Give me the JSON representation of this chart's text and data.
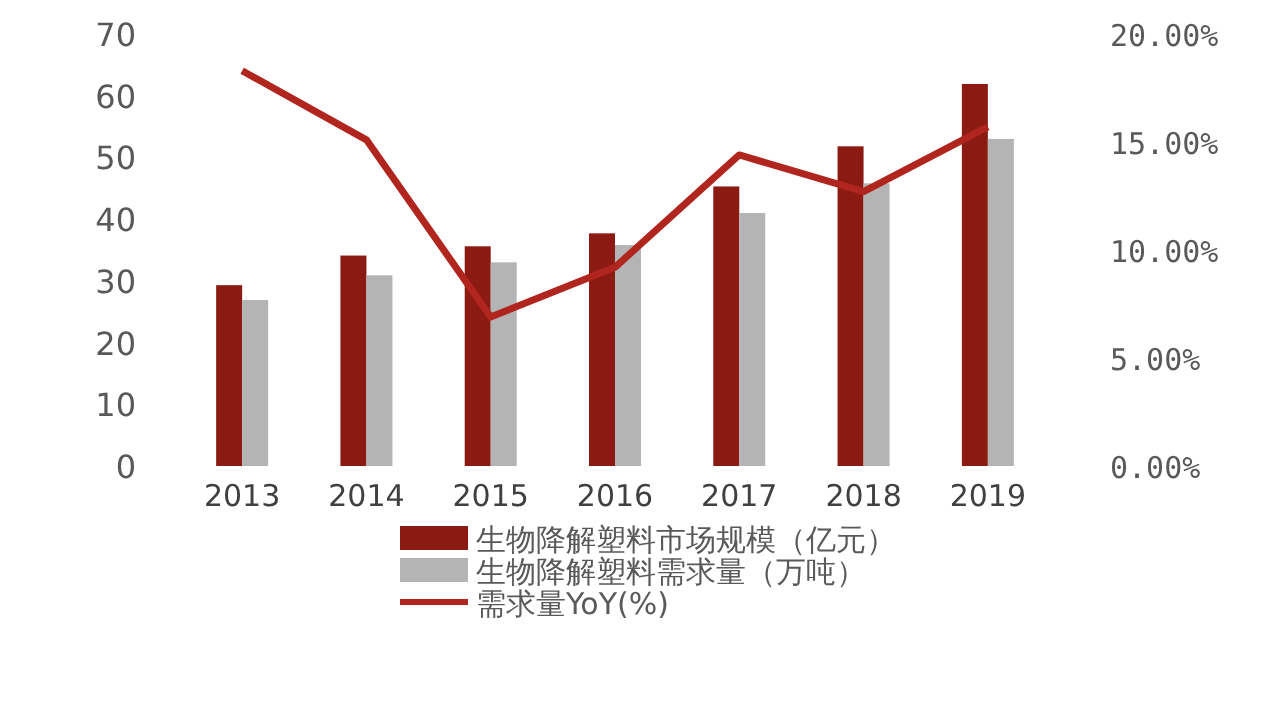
{
  "chart_data": {
    "type": "bar",
    "categories": [
      "2013",
      "2014",
      "2015",
      "2016",
      "2017",
      "2018",
      "2019"
    ],
    "ylim": [
      0,
      70
    ],
    "yticks": [
      0,
      10,
      20,
      30,
      40,
      50,
      60,
      70
    ],
    "y2lim": [
      0,
      20
    ],
    "y2ticks": [
      {
        "value": 0,
        "label": "0.00%"
      },
      {
        "value": 5,
        "label": "5.00%"
      },
      {
        "value": 10,
        "label": "10.00%"
      },
      {
        "value": 15,
        "label": "15.00%"
      },
      {
        "value": 20,
        "label": "20.00%"
      }
    ],
    "legend": "bottom",
    "grid": false,
    "series": [
      {
        "name": "生物降解塑料市场规模（亿元）",
        "color": "#8b1a12",
        "values": [
          29.3,
          34.1,
          35.6,
          37.7,
          45.3,
          51.8,
          61.9
        ]
      },
      {
        "name": "生物降解塑料需求量（万吨）",
        "color": "#b4b4b4",
        "values": [
          26.9,
          30.9,
          33.0,
          35.8,
          41.0,
          45.8,
          53.0
        ]
      },
      {
        "name": "需求量YoY(%)",
        "type": "line",
        "axis": "y2",
        "color": "#b0261e",
        "marker": "none",
        "line_style": "solid",
        "values": [
          18.3,
          15.1,
          6.9,
          9.2,
          14.4,
          12.7,
          15.7
        ]
      }
    ]
  }
}
